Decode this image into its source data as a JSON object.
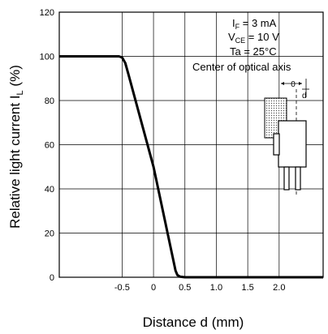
{
  "chart_data": {
    "type": "line",
    "xlabel": "Distance d (mm)",
    "ylabel": "Relative light current",
    "ylabel_symbol": "I",
    "ylabel_symbol_sub": "L",
    "ylabel_unit": "(%)",
    "xlim": [
      -1.5,
      2.7
    ],
    "ylim": [
      0,
      120
    ],
    "x_ticks": [
      -0.5,
      0,
      0.5,
      1,
      1.5,
      2
    ],
    "x_tick_labels": [
      "-0.5",
      "0",
      "0.5",
      "1.0",
      "1.5",
      "2.0"
    ],
    "y_ticks": [
      0,
      20,
      40,
      60,
      80,
      100,
      120
    ],
    "y_tick_labels": [
      "0",
      "20",
      "40",
      "60",
      "80",
      "100",
      "120"
    ],
    "grid": true,
    "series": [
      {
        "x": [
          -1.5,
          -0.55,
          -0.5,
          -0.45,
          -0.4,
          0,
          0.35,
          0.38,
          0.42,
          0.5,
          2.7
        ],
        "y": [
          100,
          100,
          99.5,
          97,
          92,
          50,
          3,
          1,
          0.3,
          0,
          0
        ]
      }
    ],
    "conditions": [
      {
        "main": "I",
        "sub": "F",
        "rest": " = 3 mA"
      },
      {
        "main": "V",
        "sub": "CE",
        "rest": " = 10 V"
      },
      {
        "main": "Ta = 25°C",
        "sub": "",
        "rest": ""
      },
      {
        "main": "Center of optical axis",
        "sub": "",
        "rest": ""
      }
    ],
    "inset": {
      "zero_label": "0",
      "d_label": "d"
    }
  }
}
